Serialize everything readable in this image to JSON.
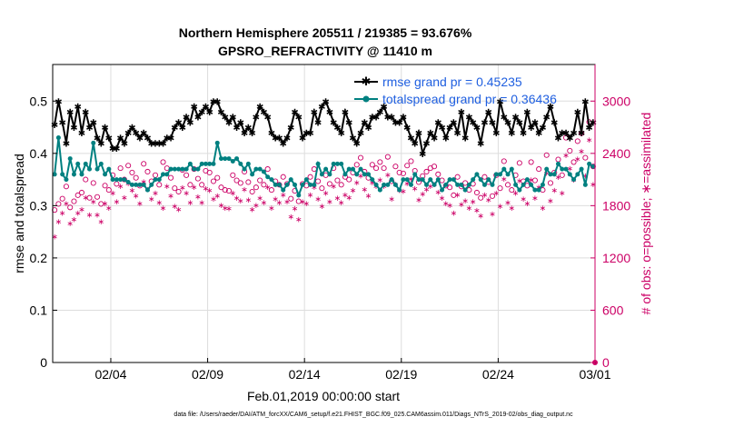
{
  "title_line1": "Northern Hemisphere 205511 / 219385 = 93.676%",
  "title_line2": "GPSRO_REFRACTIVITY @ 11410 m",
  "xlabel": "Feb.01,2019 00:00:00 start",
  "ylabel_left": "rmse and totalspread",
  "ylabel_right": "# of obs: o=possible; ∗=assimilated",
  "footnote": "data file: /Users/raeder/DAI/ATM_forcXX/CAM6_setup/f.e21.FHIST_BGC.f09_025.CAM6assim.011/Diags_NTrS_2019-02/obs_diag_output.nc",
  "legend": {
    "rmse": "rmse grand pr = 0.45235",
    "spread": "totalspread grand pr = 0.36436"
  },
  "colors": {
    "rmse": "#000000",
    "spread": "#008080",
    "obs": "#cc0066",
    "grid": "#dddddd",
    "legend_text": "#1f5fe0"
  },
  "chart_data": {
    "type": "line",
    "x_unit": "days since Feb.01,2019 00:00:00",
    "xlim": [
      0,
      28
    ],
    "x_ticks": [
      3,
      8,
      13,
      18,
      23,
      28
    ],
    "x_tick_labels": [
      "02/04",
      "02/09",
      "02/14",
      "02/19",
      "02/24",
      "03/01"
    ],
    "ylim_left": [
      0,
      0.57
    ],
    "y_ticks_left": [
      0,
      0.1,
      0.2,
      0.3,
      0.4,
      0.5
    ],
    "y_tick_labels_left": [
      "0",
      "0.1",
      "0.2",
      "0.3",
      "0.4",
      "0.5"
    ],
    "ylim_right": [
      0,
      3420
    ],
    "y_ticks_right": [
      0,
      600,
      1200,
      1800,
      2400,
      3000
    ],
    "y_tick_labels_right": [
      "0",
      "600",
      "1200",
      "1800",
      "2400",
      "3000"
    ],
    "grid": true,
    "legend_position": "top-right",
    "series": [
      {
        "name": "rmse grand pr = 0.45235",
        "axis": "left",
        "marker": "asterisk-line",
        "values": [
          0.455,
          0.5,
          0.46,
          0.42,
          0.48,
          0.45,
          0.49,
          0.44,
          0.48,
          0.45,
          0.46,
          0.43,
          0.42,
          0.45,
          0.43,
          0.41,
          0.41,
          0.43,
          0.42,
          0.44,
          0.45,
          0.44,
          0.43,
          0.44,
          0.43,
          0.42,
          0.42,
          0.42,
          0.42,
          0.43,
          0.43,
          0.45,
          0.46,
          0.45,
          0.47,
          0.46,
          0.49,
          0.47,
          0.48,
          0.49,
          0.48,
          0.5,
          0.5,
          0.48,
          0.47,
          0.46,
          0.47,
          0.45,
          0.46,
          0.44,
          0.45,
          0.44,
          0.47,
          0.49,
          0.48,
          0.47,
          0.44,
          0.43,
          0.43,
          0.42,
          0.43,
          0.45,
          0.48,
          0.47,
          0.43,
          0.44,
          0.44,
          0.48,
          0.46,
          0.49,
          0.5,
          0.48,
          0.46,
          0.45,
          0.44,
          0.48,
          0.46,
          0.43,
          0.42,
          0.44,
          0.46,
          0.45,
          0.47,
          0.47,
          0.48,
          0.49,
          0.47,
          0.47,
          0.46,
          0.46,
          0.47,
          0.45,
          0.43,
          0.42,
          0.44,
          0.4,
          0.42,
          0.44,
          0.43,
          0.46,
          0.45,
          0.43,
          0.45,
          0.46,
          0.44,
          0.48,
          0.43,
          0.47,
          0.46,
          0.45,
          0.42,
          0.46,
          0.48,
          0.46,
          0.44,
          0.5,
          0.47,
          0.46,
          0.44,
          0.47,
          0.46,
          0.44,
          0.48,
          0.45,
          0.46,
          0.44,
          0.45,
          0.47,
          0.49,
          0.46,
          0.43,
          0.44,
          0.44,
          0.43,
          0.44,
          0.48,
          0.44,
          0.5,
          0.45,
          0.46
        ]
      },
      {
        "name": "totalspread grand pr = 0.36436",
        "axis": "left",
        "marker": "dot-line",
        "values": [
          0.36,
          0.43,
          0.36,
          0.35,
          0.39,
          0.36,
          0.38,
          0.36,
          0.38,
          0.37,
          0.42,
          0.37,
          0.38,
          0.36,
          0.37,
          0.35,
          0.35,
          0.35,
          0.35,
          0.345,
          0.34,
          0.34,
          0.34,
          0.34,
          0.33,
          0.34,
          0.35,
          0.35,
          0.36,
          0.36,
          0.37,
          0.37,
          0.37,
          0.37,
          0.37,
          0.38,
          0.37,
          0.37,
          0.38,
          0.38,
          0.38,
          0.38,
          0.42,
          0.39,
          0.39,
          0.39,
          0.385,
          0.39,
          0.38,
          0.37,
          0.38,
          0.36,
          0.37,
          0.37,
          0.365,
          0.355,
          0.35,
          0.34,
          0.34,
          0.33,
          0.34,
          0.35,
          0.34,
          0.32,
          0.34,
          0.35,
          0.34,
          0.34,
          0.38,
          0.36,
          0.37,
          0.36,
          0.38,
          0.38,
          0.38,
          0.36,
          0.37,
          0.37,
          0.36,
          0.37,
          0.36,
          0.36,
          0.35,
          0.34,
          0.33,
          0.34,
          0.34,
          0.35,
          0.34,
          0.33,
          0.35,
          0.35,
          0.34,
          0.36,
          0.35,
          0.35,
          0.34,
          0.35,
          0.34,
          0.35,
          0.33,
          0.34,
          0.35,
          0.35,
          0.34,
          0.34,
          0.33,
          0.34,
          0.35,
          0.36,
          0.35,
          0.34,
          0.35,
          0.34,
          0.36,
          0.36,
          0.37,
          0.36,
          0.37,
          0.34,
          0.33,
          0.34,
          0.35,
          0.34,
          0.33,
          0.33,
          0.34,
          0.37,
          0.36,
          0.36,
          0.38,
          0.37,
          0.37,
          0.36,
          0.35,
          0.36,
          0.37,
          0.34,
          0.38,
          0.375
        ]
      },
      {
        "name": "obs possible",
        "axis": "right",
        "marker": "circle",
        "values": [
          1750,
          1820,
          1880,
          2020,
          1780,
          1850,
          1920,
          1950,
          2100,
          1890,
          2060,
          1900,
          1820,
          2030,
          1980,
          2150,
          2050,
          2230,
          2100,
          2260,
          2180,
          2120,
          2030,
          2280,
          2190,
          2080,
          2150,
          2040,
          2300,
          2230,
          2120,
          2000,
          1960,
          2210,
          2150,
          2040,
          2220,
          2110,
          2040,
          2200,
          2180,
          2080,
          2120,
          2010,
          1980,
          1970,
          2150,
          2090,
          2060,
          2190,
          2070,
          1960,
          2010,
          2090,
          2040,
          2220,
          1980,
          2080,
          2040,
          2130,
          2050,
          1880,
          1970,
          1850,
          2050,
          2030,
          2130,
          2220,
          2080,
          2000,
          2150,
          2050,
          2230,
          2090,
          2040,
          2130,
          2100,
          2180,
          2270,
          2350,
          2190,
          2120,
          2270,
          2230,
          2300,
          2230,
          2360,
          2080,
          2250,
          2180,
          2170,
          2260,
          2310,
          2200,
          2070,
          2140,
          2190,
          2230,
          2250,
          2160,
          2090,
          2030,
          2010,
          1920,
          2130,
          2020,
          2060,
          1980,
          2050,
          1950,
          1890,
          2130,
          2070,
          1910,
          2150,
          2000,
          2310,
          2040,
          1980,
          2150,
          2290,
          2080,
          2030,
          2300,
          2090,
          2220,
          1980,
          2380,
          2060,
          2180,
          2330,
          2150,
          2580,
          2430,
          2300,
          2540,
          2630,
          2350,
          2760,
          2250
        ]
      },
      {
        "name": "obs assimilated",
        "axis": "right",
        "marker": "asterisk",
        "values": [
          1450,
          1620,
          1720,
          1830,
          1600,
          1650,
          1720,
          1760,
          1900,
          1700,
          1850,
          1700,
          1620,
          1830,
          1780,
          1950,
          1850,
          2030,
          1900,
          2060,
          1980,
          1920,
          1830,
          2080,
          1990,
          1880,
          1950,
          1840,
          1780,
          2030,
          1920,
          1800,
          1760,
          2010,
          1950,
          1840,
          2020,
          1910,
          1840,
          2000,
          1980,
          1880,
          1920,
          1810,
          1780,
          1770,
          1950,
          1890,
          1860,
          1990,
          1870,
          1760,
          1810,
          1890,
          1840,
          2020,
          1780,
          1880,
          1840,
          1930,
          1850,
          1680,
          1770,
          1650,
          1850,
          1830,
          1930,
          2020,
          1880,
          1800,
          1950,
          1850,
          2030,
          1890,
          1840,
          1930,
          1900,
          1980,
          2070,
          2150,
          1990,
          1920,
          2070,
          2030,
          2100,
          2030,
          2160,
          1880,
          2050,
          1980,
          1970,
          2060,
          2110,
          2000,
          1870,
          1940,
          1990,
          2030,
          2050,
          1960,
          1890,
          1830,
          1810,
          1720,
          1930,
          1820,
          1860,
          1780,
          1850,
          1750,
          1690,
          1930,
          1870,
          1710,
          1950,
          1800,
          2110,
          1840,
          1780,
          1950,
          2090,
          1880,
          1830,
          2100,
          1890,
          2020,
          1780,
          2180,
          1860,
          1980,
          2130,
          1950,
          2380,
          2230,
          2100,
          2340,
          2430,
          2150,
          2560,
          2050
        ]
      }
    ]
  }
}
